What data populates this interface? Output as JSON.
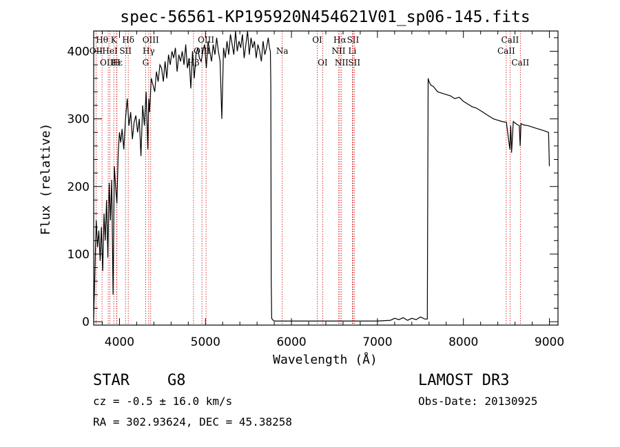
{
  "colors": {
    "axis": "#000000",
    "spectrum": "#000000",
    "lines": "#cc0000"
  },
  "chart_data": {
    "type": "line",
    "title": "spec-56561-KP195920N454621V01_sp06-145.fits",
    "xlabel": "Wavelength (Å)",
    "ylabel": "Flux (relative)",
    "xlim": [
      3700,
      9100
    ],
    "ylim": [
      -5,
      430
    ],
    "xticks": [
      4000,
      5000,
      6000,
      7000,
      8000,
      9000
    ],
    "yticks": [
      0,
      100,
      200,
      300,
      400
    ],
    "series": [
      {
        "name": "flux",
        "x": [
          3700,
          3715,
          3730,
          3745,
          3760,
          3775,
          3790,
          3805,
          3820,
          3835,
          3850,
          3865,
          3880,
          3895,
          3910,
          3925,
          3940,
          3955,
          3970,
          3985,
          4000,
          4015,
          4030,
          4050,
          4070,
          4090,
          4110,
          4130,
          4150,
          4170,
          4190,
          4210,
          4230,
          4250,
          4270,
          4290,
          4310,
          4330,
          4340,
          4350,
          4370,
          4390,
          4410,
          4430,
          4450,
          4470,
          4490,
          4510,
          4530,
          4550,
          4570,
          4590,
          4610,
          4630,
          4650,
          4670,
          4690,
          4710,
          4730,
          4750,
          4770,
          4790,
          4810,
          4830,
          4850,
          4870,
          4890,
          4910,
          4930,
          4950,
          4970,
          4990,
          5010,
          5030,
          5050,
          5070,
          5090,
          5110,
          5130,
          5150,
          5170,
          5190,
          5210,
          5230,
          5250,
          5270,
          5290,
          5310,
          5330,
          5350,
          5370,
          5390,
          5410,
          5430,
          5450,
          5470,
          5490,
          5510,
          5530,
          5550,
          5570,
          5590,
          5610,
          5630,
          5650,
          5670,
          5690,
          5710,
          5730,
          5745,
          5755,
          5760,
          5765,
          5770,
          5780,
          5800,
          5900,
          6000,
          6500,
          7000,
          7150,
          7200,
          7250,
          7300,
          7350,
          7400,
          7450,
          7500,
          7550,
          7580,
          7590,
          7600,
          7620,
          7650,
          7700,
          7750,
          7800,
          7850,
          7900,
          7950,
          8000,
          8050,
          8100,
          8150,
          8200,
          8250,
          8300,
          8350,
          8400,
          8450,
          8500,
          8540,
          8550,
          8560,
          8580,
          8600,
          8620,
          8650,
          8660,
          8670,
          8700,
          8750,
          8800,
          8850,
          8900,
          8950,
          8990,
          9000
        ],
        "values": [
          5,
          80,
          150,
          110,
          135,
          90,
          140,
          75,
          160,
          120,
          180,
          95,
          205,
          150,
          210,
          40,
          230,
          200,
          175,
          250,
          280,
          265,
          285,
          255,
          300,
          330,
          290,
          310,
          270,
          295,
          305,
          280,
          300,
          245,
          320,
          290,
          340,
          255,
          330,
          310,
          360,
          350,
          340,
          370,
          355,
          380,
          375,
          355,
          385,
          360,
          395,
          380,
          400,
          390,
          405,
          370,
          395,
          385,
          400,
          380,
          410,
          375,
          390,
          345,
          400,
          360,
          395,
          405,
          390,
          385,
          400,
          410,
          375,
          415,
          400,
          385,
          410,
          395,
          420,
          400,
          385,
          300,
          405,
          390,
          415,
          395,
          425,
          410,
          395,
          430,
          400,
          415,
          405,
          425,
          390,
          410,
          430,
          395,
          420,
          405,
          415,
          390,
          410,
          400,
          385,
          415,
          395,
          405,
          420,
          405,
          400,
          350,
          60,
          5,
          3,
          1,
          1,
          1,
          1,
          1,
          2,
          5,
          3,
          6,
          2,
          5,
          3,
          7,
          4,
          4,
          360,
          355,
          350,
          348,
          340,
          338,
          336,
          334,
          330,
          332,
          326,
          322,
          318,
          316,
          312,
          308,
          304,
          300,
          298,
          296,
          295,
          255,
          290,
          250,
          296,
          294,
          292,
          290,
          260,
          293,
          291,
          290,
          288,
          286,
          284,
          282,
          280,
          230
        ]
      }
    ],
    "spectral_lines": [
      {
        "label": "Hθ",
        "x": 3797,
        "row": 1
      },
      {
        "label": "OII",
        "x": 3727,
        "row": 2
      },
      {
        "label": "OIII",
        "x": 3869,
        "row": 3
      },
      {
        "label": "K",
        "x": 3934,
        "row": 1
      },
      {
        "label": "HeI",
        "x": 3889,
        "row": 2
      },
      {
        "label": "Hε",
        "x": 3970,
        "row": 3
      },
      {
        "label": "Hδ",
        "x": 4102,
        "row": 1
      },
      {
        "label": "SII",
        "x": 4070,
        "row": 2
      },
      {
        "label": "H",
        "x": 3968,
        "row": 3
      },
      {
        "label": "OIII",
        "x": 4363,
        "row": 1
      },
      {
        "label": "Hγ",
        "x": 4340,
        "row": 2
      },
      {
        "label": "G",
        "x": 4304,
        "row": 3
      },
      {
        "label": "OIII",
        "x": 5007,
        "row": 1
      },
      {
        "label": "OIII",
        "x": 4959,
        "row": 2
      },
      {
        "label": "Hβ",
        "x": 4861,
        "row": 3
      },
      {
        "label": "Na",
        "x": 5893,
        "row": 2
      },
      {
        "label": "OI",
        "x": 6300,
        "row": 1
      },
      {
        "label": "OI",
        "x": 6363,
        "row": 3
      },
      {
        "label": "Hα",
        "x": 6563,
        "row": 1
      },
      {
        "label": "NII",
        "x": 6548,
        "row": 2
      },
      {
        "label": "NII",
        "x": 6583,
        "row": 3
      },
      {
        "label": "SII",
        "x": 6716,
        "row": 1
      },
      {
        "label": "Li",
        "x": 6708,
        "row": 2
      },
      {
        "label": "SII",
        "x": 6731,
        "row": 3
      },
      {
        "label": "CaII",
        "x": 8542,
        "row": 1
      },
      {
        "label": "CaII",
        "x": 8498,
        "row": 2
      },
      {
        "label": "CaII",
        "x": 8662,
        "row": 3
      }
    ]
  },
  "info": {
    "object_class": "STAR",
    "subclass": "G8",
    "survey": "LAMOST DR3",
    "redshift": "cz = -0.5 ± 16.0 km/s",
    "obs_date": "Obs-Date: 20130925",
    "coords": "RA = 302.93624, DEC =  45.38258"
  }
}
